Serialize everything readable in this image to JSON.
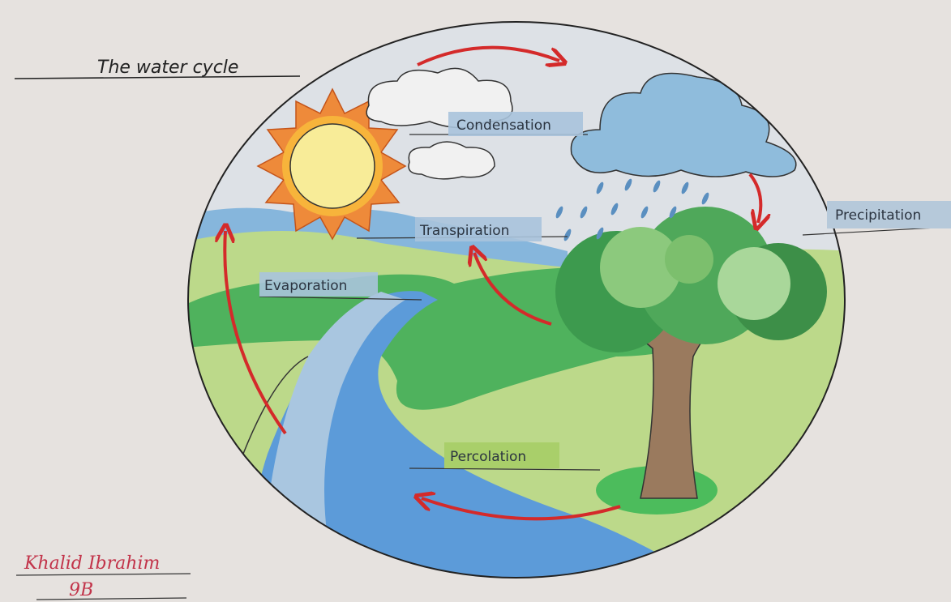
{
  "title": "The water cycle",
  "labels": {
    "condensation": "Condensation",
    "precipitation": "Precipitation",
    "transpiration": "Transpiration",
    "evaporation": "Evaporation",
    "percolation": "Percolation"
  },
  "signature": {
    "name": "Khalid Ibrahim",
    "class": "9B"
  }
}
